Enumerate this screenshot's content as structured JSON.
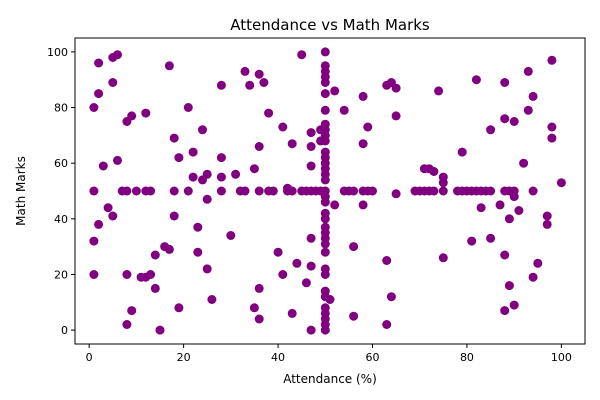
{
  "chart_data": {
    "type": "scatter",
    "title": "Attendance vs Math Marks",
    "xlabel": "Attendance (%)",
    "ylabel": "Math Marks",
    "xlim": [
      -3,
      105
    ],
    "ylim": [
      -5,
      105
    ],
    "xticks": [
      0,
      20,
      40,
      60,
      80,
      100
    ],
    "yticks": [
      0,
      20,
      40,
      60,
      80,
      100
    ],
    "grid": false,
    "marker_color": "#800080",
    "points": [
      [
        1,
        80
      ],
      [
        1,
        50
      ],
      [
        1,
        32
      ],
      [
        1,
        20
      ],
      [
        2,
        96
      ],
      [
        2,
        85
      ],
      [
        2,
        38
      ],
      [
        3,
        59
      ],
      [
        4,
        44
      ],
      [
        5,
        98
      ],
      [
        5,
        89
      ],
      [
        5,
        41
      ],
      [
        6,
        99
      ],
      [
        6,
        61
      ],
      [
        7,
        50
      ],
      [
        8,
        75
      ],
      [
        8,
        50
      ],
      [
        8,
        20
      ],
      [
        8,
        2
      ],
      [
        9,
        77
      ],
      [
        9,
        7
      ],
      [
        10,
        50
      ],
      [
        11,
        19
      ],
      [
        12,
        78
      ],
      [
        12,
        50
      ],
      [
        12,
        19
      ],
      [
        13,
        50
      ],
      [
        13,
        20
      ],
      [
        14,
        27
      ],
      [
        14,
        15
      ],
      [
        15,
        0
      ],
      [
        16,
        30
      ],
      [
        17,
        95
      ],
      [
        17,
        29
      ],
      [
        18,
        69
      ],
      [
        18,
        50
      ],
      [
        18,
        41
      ],
      [
        19,
        62
      ],
      [
        19,
        8
      ],
      [
        21,
        80
      ],
      [
        21,
        50
      ],
      [
        22,
        64
      ],
      [
        22,
        55
      ],
      [
        23,
        37
      ],
      [
        23,
        28
      ],
      [
        24,
        72
      ],
      [
        24,
        54
      ],
      [
        25,
        56
      ],
      [
        25,
        47
      ],
      [
        25,
        22
      ],
      [
        26,
        11
      ],
      [
        28,
        88
      ],
      [
        28,
        62
      ],
      [
        28,
        55
      ],
      [
        28,
        50
      ],
      [
        30,
        34
      ],
      [
        31,
        56
      ],
      [
        32,
        50
      ],
      [
        33,
        93
      ],
      [
        33,
        50
      ],
      [
        34,
        88
      ],
      [
        35,
        58
      ],
      [
        35,
        8
      ],
      [
        36,
        92
      ],
      [
        36,
        66
      ],
      [
        36,
        50
      ],
      [
        36,
        15
      ],
      [
        36,
        4
      ],
      [
        37,
        89
      ],
      [
        38,
        78
      ],
      [
        38,
        50
      ],
      [
        39,
        50
      ],
      [
        40,
        28
      ],
      [
        41,
        73
      ],
      [
        41,
        20
      ],
      [
        42,
        51
      ],
      [
        42,
        50
      ],
      [
        43,
        67
      ],
      [
        43,
        50
      ],
      [
        43,
        6
      ],
      [
        44,
        24
      ],
      [
        45,
        99
      ],
      [
        45,
        50
      ],
      [
        46,
        50
      ],
      [
        46,
        17
      ],
      [
        47,
        71
      ],
      [
        47,
        66
      ],
      [
        47,
        59
      ],
      [
        47,
        50
      ],
      [
        47,
        33
      ],
      [
        47,
        23
      ],
      [
        47,
        0
      ],
      [
        48,
        50
      ],
      [
        49,
        72
      ],
      [
        49,
        68
      ],
      [
        49,
        50
      ],
      [
        50,
        100
      ],
      [
        50,
        95
      ],
      [
        50,
        93
      ],
      [
        50,
        91
      ],
      [
        50,
        89
      ],
      [
        50,
        85
      ],
      [
        50,
        79
      ],
      [
        50,
        74
      ],
      [
        50,
        72
      ],
      [
        50,
        70
      ],
      [
        50,
        68
      ],
      [
        50,
        64
      ],
      [
        50,
        62
      ],
      [
        50,
        60
      ],
      [
        50,
        58
      ],
      [
        50,
        56
      ],
      [
        50,
        54
      ],
      [
        50,
        50
      ],
      [
        50,
        48
      ],
      [
        50,
        46
      ],
      [
        50,
        42
      ],
      [
        50,
        40
      ],
      [
        50,
        37
      ],
      [
        50,
        35
      ],
      [
        50,
        33
      ],
      [
        50,
        31
      ],
      [
        50,
        28
      ],
      [
        50,
        22
      ],
      [
        50,
        20
      ],
      [
        50,
        14
      ],
      [
        50,
        12
      ],
      [
        50,
        8
      ],
      [
        50,
        6
      ],
      [
        50,
        4
      ],
      [
        50,
        2
      ],
      [
        50,
        0
      ],
      [
        51,
        11
      ],
      [
        52,
        86
      ],
      [
        52,
        45
      ],
      [
        54,
        79
      ],
      [
        54,
        50
      ],
      [
        55,
        50
      ],
      [
        56,
        50
      ],
      [
        56,
        30
      ],
      [
        56,
        5
      ],
      [
        58,
        84
      ],
      [
        58,
        67
      ],
      [
        58,
        50
      ],
      [
        58,
        45
      ],
      [
        59,
        73
      ],
      [
        59,
        50
      ],
      [
        60,
        50
      ],
      [
        63,
        88
      ],
      [
        63,
        25
      ],
      [
        63,
        2
      ],
      [
        64,
        89
      ],
      [
        64,
        12
      ],
      [
        65,
        87
      ],
      [
        65,
        77
      ],
      [
        65,
        49
      ],
      [
        69,
        50
      ],
      [
        70,
        50
      ],
      [
        71,
        58
      ],
      [
        71,
        50
      ],
      [
        72,
        58
      ],
      [
        72,
        50
      ],
      [
        73,
        57
      ],
      [
        73,
        50
      ],
      [
        74,
        86
      ],
      [
        75,
        55
      ],
      [
        75,
        53
      ],
      [
        75,
        50
      ],
      [
        75,
        26
      ],
      [
        78,
        50
      ],
      [
        79,
        64
      ],
      [
        79,
        50
      ],
      [
        80,
        50
      ],
      [
        81,
        50
      ],
      [
        81,
        32
      ],
      [
        82,
        90
      ],
      [
        82,
        50
      ],
      [
        83,
        50
      ],
      [
        83,
        44
      ],
      [
        84,
        50
      ],
      [
        85,
        72
      ],
      [
        85,
        50
      ],
      [
        85,
        33
      ],
      [
        87,
        45
      ],
      [
        88,
        89
      ],
      [
        88,
        76
      ],
      [
        88,
        50
      ],
      [
        88,
        27
      ],
      [
        88,
        7
      ],
      [
        89,
        50
      ],
      [
        89,
        40
      ],
      [
        89,
        16
      ],
      [
        90,
        75
      ],
      [
        90,
        50
      ],
      [
        90,
        48
      ],
      [
        90,
        9
      ],
      [
        91,
        43
      ],
      [
        92,
        60
      ],
      [
        93,
        93
      ],
      [
        93,
        79
      ],
      [
        94,
        84
      ],
      [
        94,
        50
      ],
      [
        94,
        19
      ],
      [
        95,
        24
      ],
      [
        97,
        41
      ],
      [
        97,
        38
      ],
      [
        98,
        97
      ],
      [
        98,
        73
      ],
      [
        98,
        69
      ],
      [
        100,
        53
      ]
    ]
  }
}
